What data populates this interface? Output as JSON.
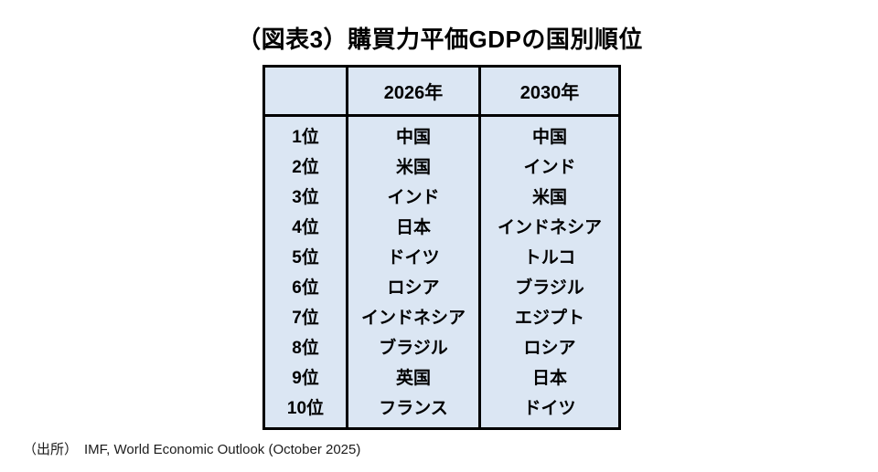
{
  "chart_data": {
    "type": "table",
    "title": "（図表3）購買力平価GDPの国別順位",
    "columns": [
      "",
      "2026年",
      "2030年"
    ],
    "rows": [
      [
        "1位",
        "中国",
        "中国"
      ],
      [
        "2位",
        "米国",
        "インド"
      ],
      [
        "3位",
        "インド",
        "米国"
      ],
      [
        "4位",
        "日本",
        "インドネシア"
      ],
      [
        "5位",
        "ドイツ",
        "トルコ"
      ],
      [
        "6位",
        "ロシア",
        "ブラジル"
      ],
      [
        "7位",
        "インドネシア",
        "エジプト"
      ],
      [
        "8位",
        "ブラジル",
        "ロシア"
      ],
      [
        "9位",
        "英国",
        "日本"
      ],
      [
        "10位",
        "フランス",
        "ドイツ"
      ]
    ],
    "source_label": "（出所）",
    "source_text": "IMF, World Economic Outlook (October 2025)",
    "layout": {
      "legend": "none",
      "grid": "table-borders"
    },
    "colors": {
      "cell_background": "#dbe6f3",
      "border": "#000000",
      "text": "#000000",
      "source_text": "#1b1b1b",
      "page_background": "#ffffff"
    }
  }
}
